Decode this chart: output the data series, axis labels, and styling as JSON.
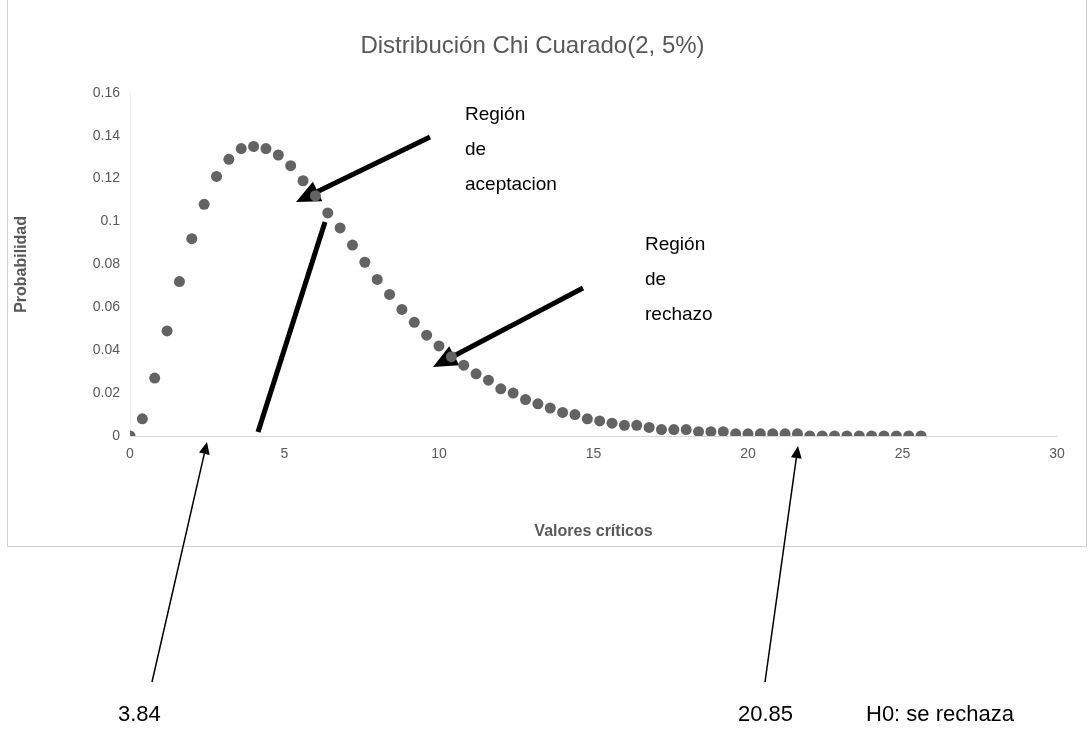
{
  "chart_data": {
    "type": "scatter",
    "title": "Distribución Chi Cuarado(2, 5%)",
    "xlabel": "Valores críticos",
    "ylabel": "Probabilidad",
    "x": [
      0,
      0.4,
      0.8,
      1.2,
      1.6,
      2,
      2.4,
      2.8,
      3.2,
      3.6,
      4,
      4.4,
      4.8,
      5.2,
      5.6,
      6,
      6.4,
      6.8,
      7.2,
      7.6,
      8,
      8.4,
      8.8,
      9.2,
      9.6,
      10,
      10.4,
      10.8,
      11.2,
      11.6,
      12,
      12.4,
      12.8,
      13.2,
      13.6,
      14,
      14.4,
      14.8,
      15.2,
      15.6,
      16,
      16.4,
      16.8,
      17.2,
      17.6,
      18,
      18.4,
      18.8,
      19.2,
      19.6,
      20,
      20.4,
      20.8,
      21.2,
      21.6,
      22,
      22.4,
      22.8,
      23.2,
      23.6,
      24,
      24.4,
      24.8,
      25.2,
      25.6
    ],
    "series": [
      {
        "color": "#636363",
        "values": [
          0,
          0.008,
          0.027,
          0.049,
          0.072,
          0.092,
          0.108,
          0.121,
          0.129,
          0.134,
          0.135,
          0.134,
          0.131,
          0.126,
          0.119,
          0.112,
          0.104,
          0.097,
          0.089,
          0.081,
          0.073,
          0.066,
          0.059,
          0.053,
          0.047,
          0.042,
          0.037,
          0.033,
          0.029,
          0.026,
          0.022,
          0.02,
          0.017,
          0.015,
          0.013,
          0.011,
          0.01,
          0.008,
          0.007,
          0.006,
          0.005,
          0.005,
          0.004,
          0.003,
          0.003,
          0.003,
          0.002,
          0.002,
          0.002,
          0.001,
          0.001,
          0.001,
          0.001,
          0.001,
          0.001,
          0,
          0,
          0,
          0,
          0,
          0,
          0,
          0,
          0,
          0
        ]
      }
    ],
    "xlim": [
      0,
      30
    ],
    "xticks": [
      0,
      5,
      10,
      15,
      20,
      25,
      30
    ],
    "ylim": [
      0,
      0.16
    ],
    "yticks": [
      0,
      0.02,
      0.04,
      0.06,
      0.08,
      {
        "value": 0.1,
        "label": "0.1"
      },
      0.12,
      0.14,
      0.16
    ],
    "marker": "circle",
    "grid": false,
    "legend": false,
    "annotations": [
      "Región de aceptacion",
      "Región de rechazo",
      "3.84",
      "20.85",
      "H0: se rechaza"
    ]
  }
}
